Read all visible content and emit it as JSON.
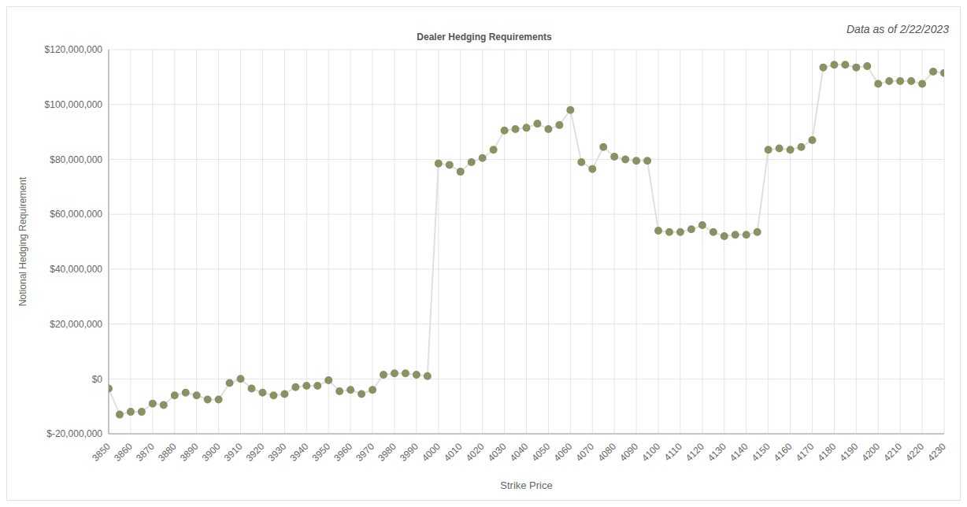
{
  "chart_data": {
    "type": "line",
    "title": "Dealer Hedging Requirements",
    "subtitle": "Data as of 2/22/2023",
    "x_label": "Strike Price",
    "y_label": "Notional Hedging Requirement",
    "marker": "circle",
    "color": "#8b9163",
    "grid": true,
    "x": [
      3850,
      3855,
      3860,
      3865,
      3870,
      3875,
      3880,
      3885,
      3890,
      3895,
      3900,
      3905,
      3910,
      3915,
      3920,
      3925,
      3930,
      3935,
      3940,
      3945,
      3950,
      3955,
      3960,
      3965,
      3970,
      3975,
      3980,
      3985,
      3990,
      3995,
      4000,
      4005,
      4010,
      4015,
      4020,
      4025,
      4030,
      4035,
      4040,
      4045,
      4050,
      4055,
      4060,
      4065,
      4070,
      4075,
      4080,
      4085,
      4090,
      4095,
      4100,
      4105,
      4110,
      4115,
      4120,
      4125,
      4130,
      4135,
      4140,
      4145,
      4150,
      4155,
      4160,
      4165,
      4170,
      4175,
      4180,
      4185,
      4190,
      4195,
      4200,
      4205,
      4210,
      4215,
      4220,
      4225,
      4230
    ],
    "values": [
      -3500000,
      -13000000,
      -12000000,
      -12000000,
      -9000000,
      -9500000,
      -6000000,
      -5000000,
      -6000000,
      -7500000,
      -7500000,
      -1500000,
      0,
      -3500000,
      -5000000,
      -6000000,
      -5500000,
      -3000000,
      -2500000,
      -2500000,
      -500000,
      -4500000,
      -4000000,
      -5500000,
      -4000000,
      1500000,
      2000000,
      2000000,
      1500000,
      1000000,
      78500000,
      78000000,
      75500000,
      79000000,
      80500000,
      83500000,
      90500000,
      91000000,
      91500000,
      93000000,
      91000000,
      92500000,
      98000000,
      79000000,
      76500000,
      84500000,
      81000000,
      80000000,
      79500000,
      79500000,
      54000000,
      53500000,
      53500000,
      54500000,
      56000000,
      53500000,
      52000000,
      52500000,
      52500000,
      53500000,
      83500000,
      84000000,
      83500000,
      84500000,
      87000000,
      113500000,
      114500000,
      114500000,
      113500000,
      114000000,
      107500000,
      108500000,
      108500000,
      108500000,
      107500000,
      112000000,
      111500000
    ],
    "xlim": [
      3850,
      4230
    ],
    "xticks": [
      3850,
      3860,
      3870,
      3880,
      3890,
      3900,
      3910,
      3920,
      3930,
      3940,
      3950,
      3960,
      3970,
      3980,
      3990,
      4000,
      4010,
      4020,
      4030,
      4040,
      4050,
      4060,
      4070,
      4080,
      4090,
      4100,
      4110,
      4120,
      4130,
      4140,
      4150,
      4160,
      4170,
      4180,
      4190,
      4200,
      4210,
      4220,
      4230
    ],
    "ylim": [
      -20000000,
      120000000
    ],
    "yticks": [
      {
        "value": -20000000,
        "label": "$-20,000,000"
      },
      {
        "value": 0,
        "label": "$0"
      },
      {
        "value": 20000000,
        "label": "$20,000,000"
      },
      {
        "value": 40000000,
        "label": "$40,000,000"
      },
      {
        "value": 60000000,
        "label": "$60,000,000"
      },
      {
        "value": 80000000,
        "label": "$80,000,000"
      },
      {
        "value": 100000000,
        "label": "$100,000,000"
      },
      {
        "value": 120000000,
        "label": "$120,000,000"
      }
    ]
  }
}
